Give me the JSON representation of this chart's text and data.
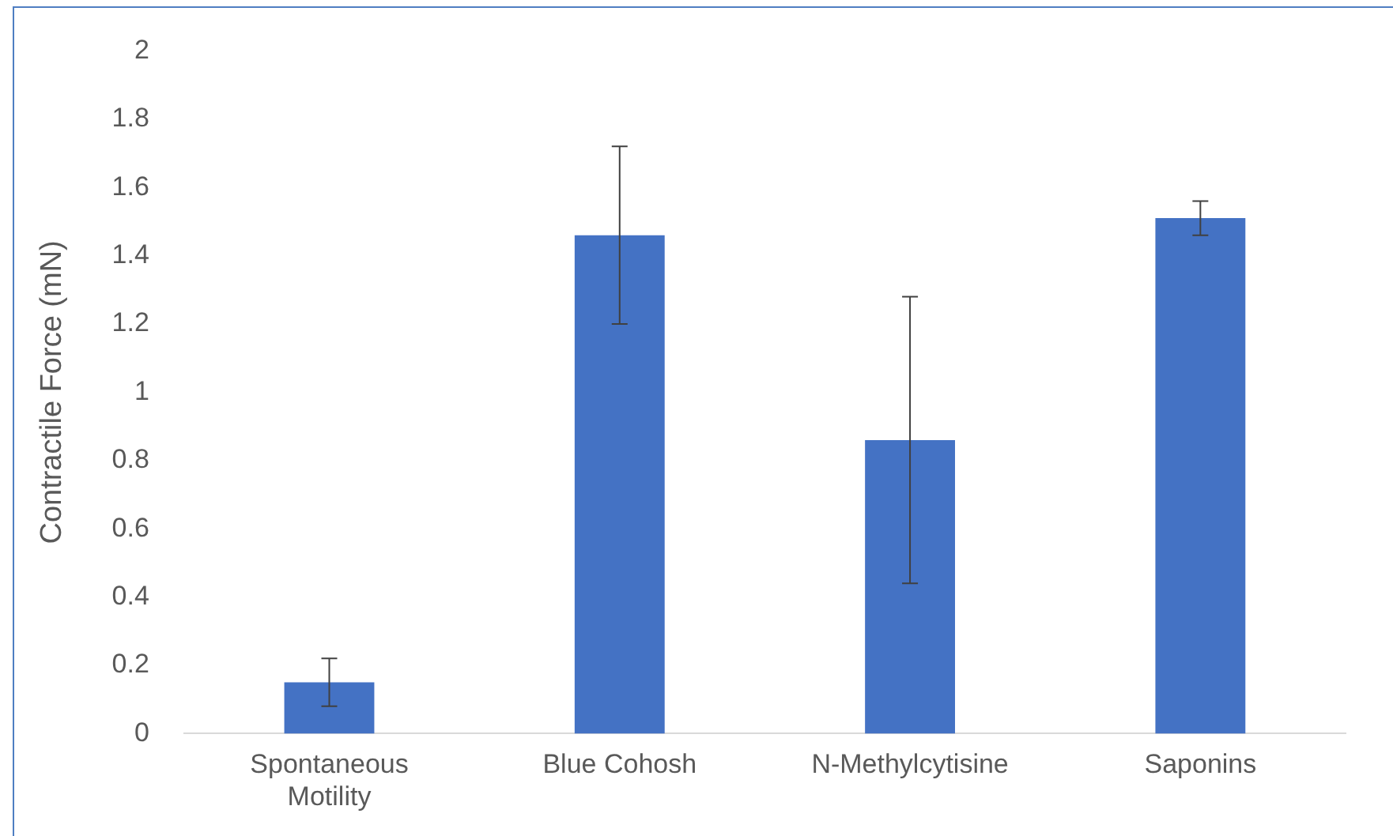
{
  "chart_data": {
    "type": "bar",
    "ylabel": "Contractile Force (mN)",
    "categories": [
      "Spontaneous Motility",
      "Blue Cohosh",
      "N-Methylcytisine",
      "Saponins"
    ],
    "values": [
      0.15,
      1.46,
      0.86,
      1.51
    ],
    "errors": [
      0.07,
      0.26,
      0.42,
      0.05
    ],
    "color": "#4472c4",
    "ylim": [
      0,
      2
    ],
    "yticks": [
      0,
      0.2,
      0.4,
      0.6,
      0.8,
      1,
      1.2,
      1.4,
      1.6,
      1.8,
      2
    ],
    "grid": false,
    "legend": false
  }
}
